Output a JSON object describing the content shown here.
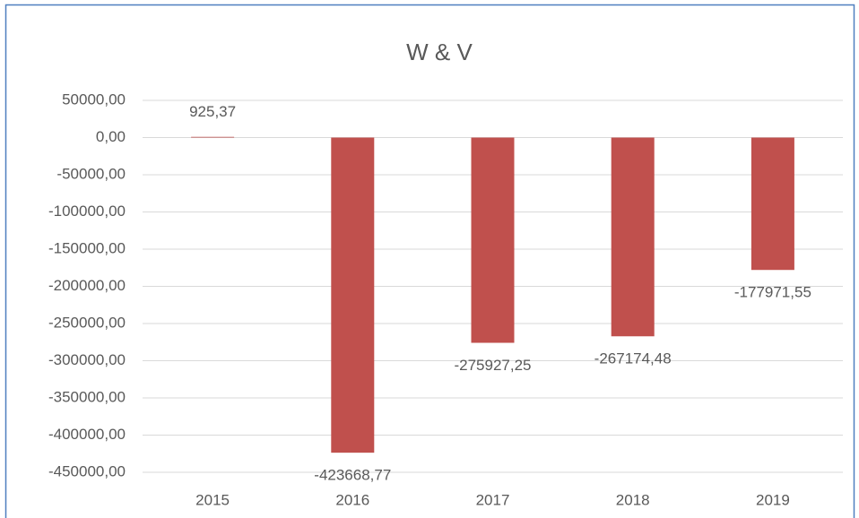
{
  "chart_data": {
    "type": "bar",
    "title": "W & V",
    "categories": [
      "2015",
      "2016",
      "2017",
      "2018",
      "2019"
    ],
    "values": [
      925.37,
      -423668.77,
      -275927.25,
      -267174.48,
      -177971.55
    ],
    "value_labels": [
      "925,37",
      "-423668,77",
      "-275927,25",
      "-267174,48",
      "-177971,55"
    ],
    "color": "#c0504d",
    "ylim": [
      -450000,
      50000
    ],
    "yticks": [
      {
        "value": 50000,
        "label": "50000,00"
      },
      {
        "value": 0,
        "label": "0,00"
      },
      {
        "value": -50000,
        "label": "-50000,00"
      },
      {
        "value": -100000,
        "label": "-100000,00"
      },
      {
        "value": -150000,
        "label": "-150000,00"
      },
      {
        "value": -200000,
        "label": "-200000,00"
      },
      {
        "value": -250000,
        "label": "-250000,00"
      },
      {
        "value": -300000,
        "label": "-300000,00"
      },
      {
        "value": -350000,
        "label": "-350000,00"
      },
      {
        "value": -400000,
        "label": "-400000,00"
      },
      {
        "value": -450000,
        "label": "-450000,00"
      }
    ],
    "grid": true
  }
}
